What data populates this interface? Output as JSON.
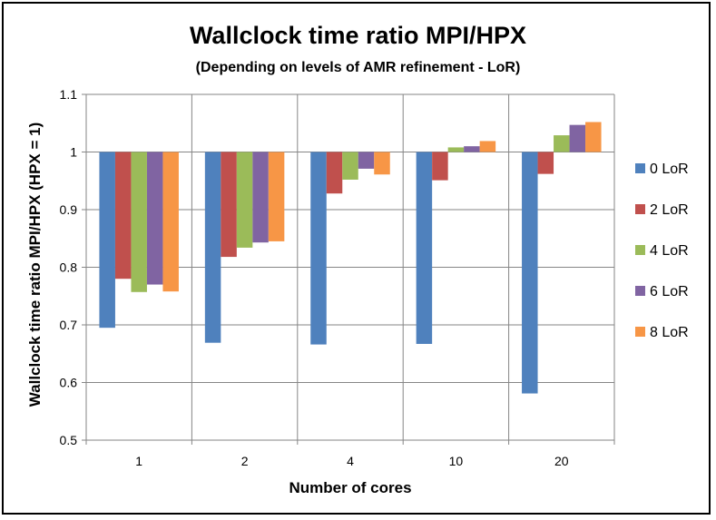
{
  "chart_data": {
    "type": "bar",
    "title": "Wallclock time ratio MPI/HPX",
    "subtitle": "(Depending on levels of AMR refinement - LoR)",
    "xlabel": "Number of cores",
    "ylabel": "Wallclock time ratio MPI/HPX (HPX = 1)",
    "categories": [
      "1",
      "2",
      "4",
      "10",
      "20"
    ],
    "baseline": 1.0,
    "ylim": [
      0.5,
      1.1
    ],
    "yticks": [
      0.5,
      0.6,
      0.7,
      0.8,
      0.9,
      1,
      1.1
    ],
    "ytick_labels": [
      "0.5",
      "0.6",
      "0.7",
      "0.8",
      "0.9",
      "1",
      "1.1"
    ],
    "grid": true,
    "legend_position": "right",
    "series": [
      {
        "name": "0 LoR",
        "color": "#4F81BD",
        "values": [
          0.695,
          0.669,
          0.666,
          0.667,
          0.581
        ]
      },
      {
        "name": "2 LoR",
        "color": "#C0504D",
        "values": [
          0.78,
          0.818,
          0.928,
          0.951,
          0.962
        ]
      },
      {
        "name": "4 LoR",
        "color": "#9BBB59",
        "values": [
          0.757,
          0.834,
          0.952,
          1.008,
          1.029
        ]
      },
      {
        "name": "6 LoR",
        "color": "#8064A2",
        "values": [
          0.77,
          0.843,
          0.971,
          1.01,
          1.047
        ]
      },
      {
        "name": "8 LoR",
        "color": "#F79646",
        "values": [
          0.758,
          0.845,
          0.961,
          1.019,
          1.052
        ]
      }
    ]
  }
}
